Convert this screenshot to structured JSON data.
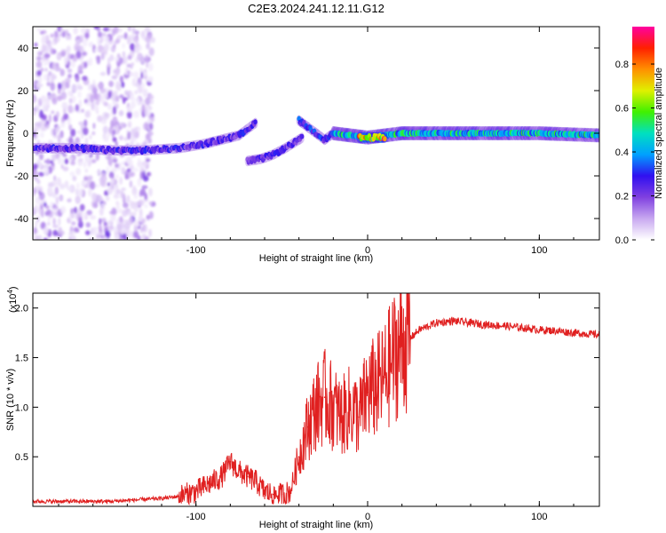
{
  "figure": {
    "title": "C2E3.2024.241.12.11.G12"
  },
  "chart_data": [
    {
      "type": "heatmap",
      "xlabel": "Height of straight line (km)",
      "ylabel": "Frequency (Hz)",
      "xlim": [
        -195,
        135
      ],
      "ylim": [
        -50,
        50
      ],
      "xticks": [
        -100,
        0,
        100
      ],
      "yticks": [
        -40,
        -20,
        0,
        20,
        40
      ],
      "colorbar": {
        "label": "Normalized spectral amplitude",
        "range": [
          0,
          0.97
        ],
        "ticks": [
          0.0,
          0.2,
          0.4,
          0.6,
          0.8
        ],
        "colors": [
          "#ffffff",
          "#c8a8f0",
          "#8040e0",
          "#3010f0",
          "#00a0ff",
          "#00e0c0",
          "#40f000",
          "#e0f000",
          "#ff9000",
          "#ff2000",
          "#ff00a0"
        ]
      },
      "ridges": [
        {
          "x": [
            -195,
            -170,
            -150,
            -130,
            -110,
            -95,
            -85,
            -75,
            -70,
            -65
          ],
          "y": [
            -7,
            -7,
            -8,
            -8,
            -7,
            -5,
            -3,
            -1,
            2,
            5
          ],
          "amplitude": 0.3
        },
        {
          "x": [
            -70,
            -62,
            -55,
            -48,
            -42,
            -38
          ],
          "y": [
            -13,
            -12,
            -10,
            -7,
            -4,
            -2
          ],
          "amplitude": 0.3
        },
        {
          "x": [
            -40,
            -35,
            -30,
            -25,
            -20
          ],
          "y": [
            6,
            3,
            0,
            -3,
            0
          ],
          "amplitude": 0.35
        },
        {
          "x": [
            -20,
            -10,
            0,
            10,
            20,
            60,
            100,
            135
          ],
          "y": [
            0,
            -1,
            -2,
            -1,
            0,
            0,
            0,
            -1
          ],
          "amplitude": 0.55
        },
        {
          "x": [
            -5,
            10
          ],
          "y": [
            -2,
            -2
          ],
          "amplitude": 0.9
        }
      ]
    },
    {
      "type": "line",
      "xlabel": "Height of straight line (km)",
      "ylabel": "SNR (10 * v/v)",
      "y_multiplier": "(x10",
      "y_multiplier_exp": "4",
      "y_multiplier_close": ")",
      "xlim": [
        -195,
        135
      ],
      "ylim": [
        0,
        2.15
      ],
      "xticks": [
        -100,
        0,
        100
      ],
      "yticks": [
        0.5,
        1.0,
        1.5,
        2.0
      ],
      "series": [
        {
          "color": "#e02020",
          "x": [
            -195,
            -180,
            -165,
            -150,
            -140,
            -130,
            -120,
            -110,
            -100,
            -95,
            -90,
            -85,
            -80,
            -75,
            -70,
            -65,
            -60,
            -55,
            -50,
            -45,
            -40,
            -35,
            -30,
            -25,
            -20,
            -15,
            -10,
            -5,
            0,
            5,
            10,
            15,
            20,
            25,
            30,
            40,
            50,
            60,
            70,
            80,
            90,
            100,
            110,
            120,
            135
          ],
          "y": [
            0.05,
            0.05,
            0.05,
            0.05,
            0.06,
            0.07,
            0.08,
            0.1,
            0.15,
            0.2,
            0.25,
            0.3,
            0.45,
            0.35,
            0.3,
            0.25,
            0.15,
            0.12,
            0.12,
            0.15,
            0.5,
            0.8,
            1.0,
            1.1,
            1.0,
            0.9,
            1.0,
            0.9,
            1.15,
            1.2,
            1.3,
            1.5,
            1.65,
            1.7,
            1.78,
            1.85,
            1.87,
            1.85,
            1.83,
            1.82,
            1.8,
            1.78,
            1.77,
            1.75,
            1.73
          ]
        }
      ]
    }
  ]
}
